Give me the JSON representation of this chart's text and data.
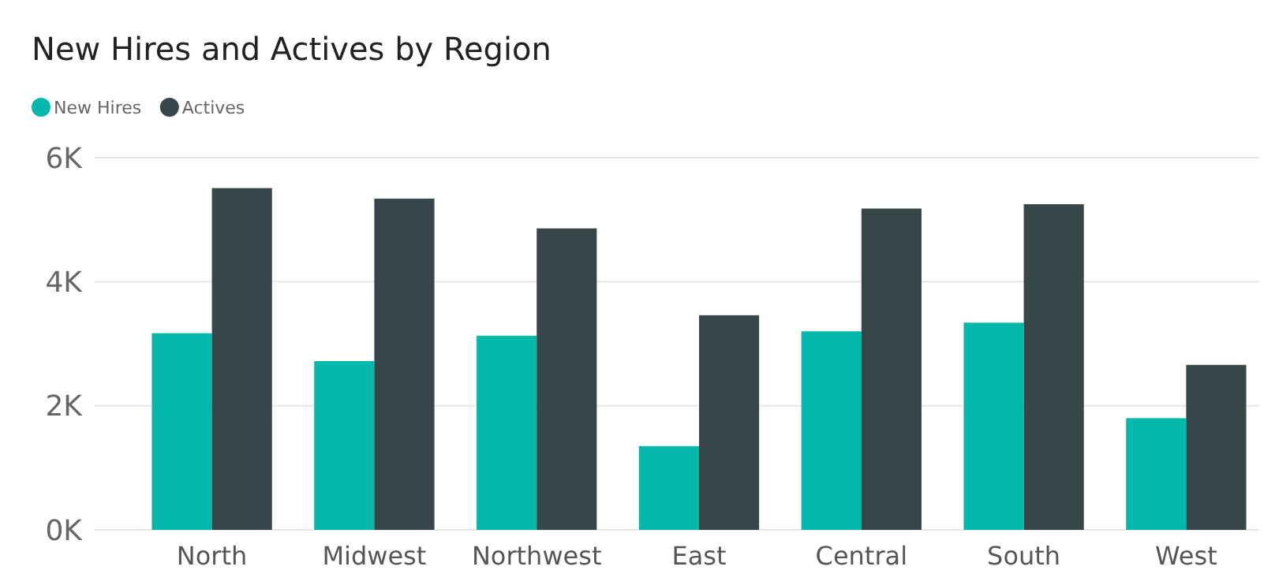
{
  "chart_data": {
    "type": "bar",
    "title": "New Hires and Actives by Region",
    "categories": [
      "North",
      "Midwest",
      "Northwest",
      "East",
      "Central",
      "South",
      "West"
    ],
    "series": [
      {
        "name": "New Hires",
        "color": "#01b8aa",
        "values": [
          3170,
          2720,
          3130,
          1350,
          3200,
          3340,
          1800
        ]
      },
      {
        "name": "Actives",
        "color": "#374649",
        "values": [
          5510,
          5340,
          4860,
          3460,
          5180,
          5250,
          2660
        ]
      }
    ],
    "ylim": [
      0,
      6000
    ],
    "yticks": [
      {
        "value": 0,
        "label": "0K"
      },
      {
        "value": 2000,
        "label": "2K"
      },
      {
        "value": 4000,
        "label": "4K"
      },
      {
        "value": 6000,
        "label": "6K"
      }
    ],
    "grid": "y",
    "legend": "top left"
  }
}
